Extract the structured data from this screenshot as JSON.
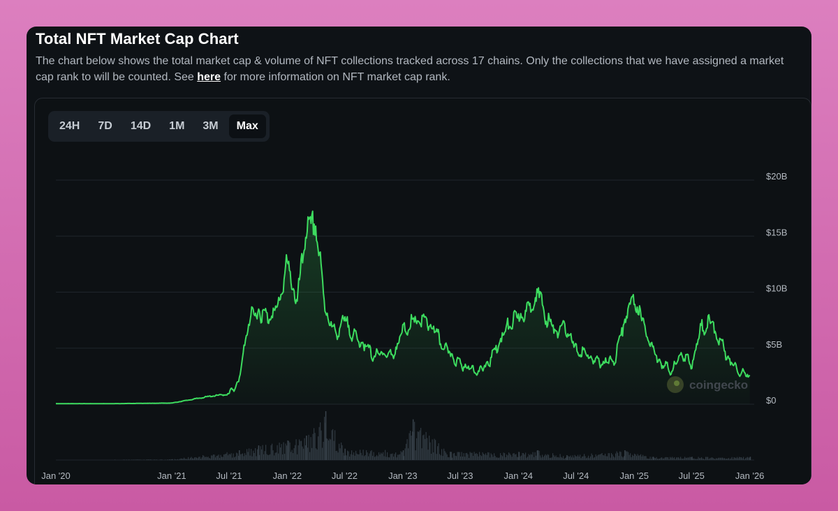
{
  "header": {
    "title": "Total NFT Market Cap Chart",
    "description_before": "The chart below shows the total market cap & volume of NFT collections tracked across 17 chains. Only the collections that we have assigned a market cap rank to will be counted. See ",
    "link_text": "here",
    "description_after": " for more information on NFT market cap rank."
  },
  "tabs": [
    {
      "label": "24H",
      "active": false
    },
    {
      "label": "7D",
      "active": false
    },
    {
      "label": "14D",
      "active": false
    },
    {
      "label": "1M",
      "active": false
    },
    {
      "label": "3M",
      "active": false
    },
    {
      "label": "Max",
      "active": true
    }
  ],
  "watermark": {
    "text": "coingecko",
    "icon": "gecko-logo-icon"
  },
  "colors": {
    "line": "#3ddc5f",
    "volume": "#2f3840",
    "grid": "#1f252b"
  },
  "chart_data": {
    "type": "area",
    "title": "",
    "xlabel": "",
    "ylabel": "",
    "ylim": [
      0,
      20
    ],
    "y_unit": "B USD",
    "y_ticks": [
      "$0",
      "$5B",
      "$10B",
      "$15B",
      "$20B"
    ],
    "x_ticks": [
      "Jan '20",
      "Jan '21",
      "Jul '21",
      "Jan '22",
      "Jul '22",
      "Jan '23",
      "Jul '23",
      "Jan '24",
      "Jul '24",
      "Jan '25",
      "Jul '25",
      "Jan '26"
    ],
    "grid": true,
    "series": [
      {
        "name": "Market Cap",
        "x": [
          "2020-01",
          "2020-07",
          "2021-01",
          "2021-03",
          "2021-05",
          "2021-07",
          "2021-08",
          "2021-09",
          "2021-10",
          "2021-11",
          "2021-12",
          "2022-01",
          "2022-02",
          "2022-03",
          "2022-04",
          "2022-05",
          "2022-06",
          "2022-07",
          "2022-08",
          "2022-09",
          "2022-10",
          "2022-11",
          "2022-12",
          "2023-01",
          "2023-02",
          "2023-03",
          "2023-04",
          "2023-05",
          "2023-06",
          "2023-07",
          "2023-08",
          "2023-09",
          "2023-10",
          "2023-11",
          "2023-12",
          "2024-01",
          "2024-02",
          "2024-03",
          "2024-04",
          "2024-05",
          "2024-06",
          "2024-07",
          "2024-08",
          "2024-09",
          "2024-10",
          "2024-11",
          "2024-12",
          "2025-01",
          "2025-02",
          "2025-03",
          "2025-04",
          "2025-05",
          "2025-06",
          "2025-07",
          "2025-08",
          "2025-09",
          "2025-10",
          "2025-11",
          "2025-12",
          "2026-01"
        ],
        "values": [
          0.05,
          0.05,
          0.1,
          0.4,
          0.7,
          0.9,
          2.0,
          7.5,
          8.3,
          7.8,
          8.5,
          12.5,
          9.0,
          15.5,
          16.0,
          8.5,
          6.2,
          7.5,
          6.0,
          5.3,
          4.3,
          4.6,
          4.3,
          6.5,
          7.3,
          7.5,
          7.0,
          5.5,
          4.4,
          3.6,
          3.2,
          2.9,
          3.8,
          5.5,
          7.0,
          7.8,
          8.3,
          10.1,
          7.5,
          6.5,
          6.8,
          4.8,
          4.5,
          3.8,
          3.7,
          4.0,
          7.5,
          9.5,
          7.0,
          4.8,
          3.5,
          3.0,
          4.6,
          3.5,
          6.8,
          7.3,
          5.5,
          3.8,
          2.9,
          2.5
        ]
      },
      {
        "name": "Volume",
        "x": [
          "2020-01",
          "2021-01",
          "2021-08",
          "2021-10",
          "2022-01",
          "2022-03",
          "2022-05",
          "2022-07",
          "2023-01",
          "2023-02",
          "2023-06",
          "2024-01",
          "2024-03",
          "2024-06",
          "2024-12",
          "2025-03",
          "2025-07",
          "2026-01"
        ],
        "values": [
          0.0,
          0.05,
          0.6,
          0.9,
          1.2,
          1.5,
          3.0,
          0.7,
          0.6,
          2.5,
          0.5,
          0.5,
          0.6,
          0.3,
          0.6,
          0.2,
          0.2,
          0.2
        ]
      }
    ]
  }
}
